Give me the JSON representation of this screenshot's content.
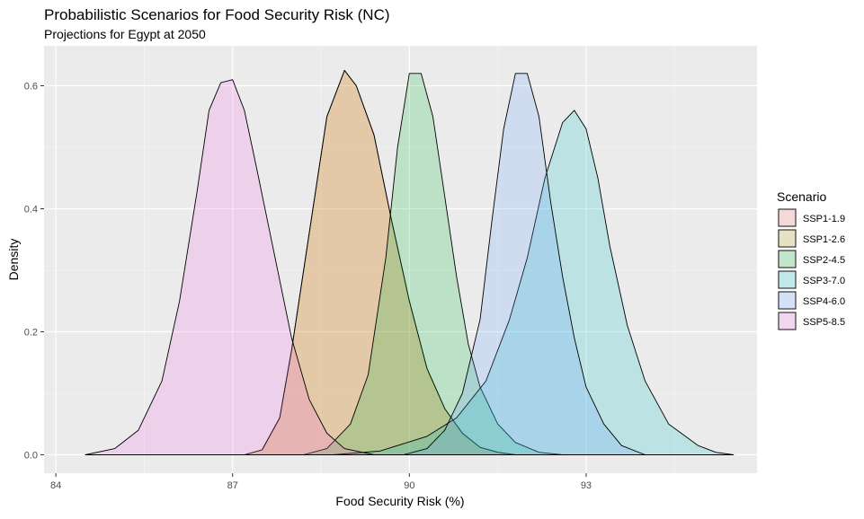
{
  "chart_data": {
    "type": "area",
    "title": "Probabilistic Scenarios for Food Security Risk (NC)",
    "subtitle": "Projections for Egypt at 2050",
    "xlabel": "Food Security Risk (%)",
    "ylabel": "Density",
    "xlim": [
      83.8,
      95.9
    ],
    "ylim": [
      -0.03,
      0.665
    ],
    "x_ticks": [
      84,
      87,
      90,
      93
    ],
    "x_tick_labels": [
      "84",
      "87",
      "90",
      "93"
    ],
    "y_ticks": [
      0.0,
      0.2,
      0.4,
      0.6
    ],
    "y_tick_labels": [
      "0.0",
      "0.2",
      "0.4",
      "0.6"
    ],
    "grid": true,
    "legend_title": "Scenario",
    "legend_position": "right",
    "series": [
      {
        "name": "SSP1-1.9",
        "color": "#F8766D",
        "x": [
          87.2,
          87.5,
          87.8,
          88.0,
          88.3,
          88.6,
          88.9,
          89.1,
          89.4,
          89.7,
          90.0,
          90.3,
          90.6,
          90.9,
          91.2,
          91.5,
          91.8
        ],
        "y": [
          0.0,
          0.008,
          0.06,
          0.17,
          0.36,
          0.55,
          0.625,
          0.6,
          0.52,
          0.38,
          0.25,
          0.14,
          0.075,
          0.035,
          0.012,
          0.004,
          0.0
        ]
      },
      {
        "name": "SSP1-2.6",
        "color": "#B79F00",
        "x": [
          87.2,
          87.5,
          87.8,
          88.0,
          88.3,
          88.6,
          88.9,
          89.1,
          89.4,
          89.7,
          90.0,
          90.3,
          90.6,
          90.9,
          91.2,
          91.5,
          91.8
        ],
        "y": [
          0.0,
          0.008,
          0.06,
          0.17,
          0.36,
          0.55,
          0.625,
          0.6,
          0.52,
          0.38,
          0.25,
          0.14,
          0.075,
          0.035,
          0.012,
          0.004,
          0.0
        ]
      },
      {
        "name": "SSP2-4.5",
        "color": "#00BA38",
        "x": [
          88.2,
          88.6,
          89.0,
          89.3,
          89.6,
          89.8,
          90.0,
          90.2,
          90.4,
          90.6,
          90.8,
          91.0,
          91.2,
          91.5,
          91.8,
          92.2,
          92.6
        ],
        "y": [
          0.0,
          0.01,
          0.05,
          0.13,
          0.32,
          0.5,
          0.62,
          0.62,
          0.55,
          0.42,
          0.29,
          0.18,
          0.11,
          0.05,
          0.02,
          0.004,
          0.0
        ]
      },
      {
        "name": "SSP3-7.0",
        "color": "#00BFC4",
        "x": [
          88.7,
          89.5,
          90.3,
          90.8,
          91.3,
          91.7,
          92.0,
          92.3,
          92.6,
          92.8,
          93.0,
          93.2,
          93.4,
          93.7,
          94.0,
          94.4,
          94.9,
          95.2,
          95.5
        ],
        "y": [
          0.0,
          0.006,
          0.03,
          0.06,
          0.12,
          0.22,
          0.32,
          0.45,
          0.54,
          0.56,
          0.53,
          0.45,
          0.34,
          0.21,
          0.12,
          0.05,
          0.015,
          0.004,
          0.0
        ]
      },
      {
        "name": "SSP4-6.0",
        "color": "#619CFF",
        "x": [
          89.9,
          90.3,
          90.6,
          90.9,
          91.2,
          91.4,
          91.6,
          91.8,
          92.0,
          92.2,
          92.4,
          92.6,
          92.8,
          93.0,
          93.3,
          93.6,
          94.0
        ],
        "y": [
          0.0,
          0.01,
          0.04,
          0.1,
          0.22,
          0.38,
          0.53,
          0.62,
          0.62,
          0.55,
          0.41,
          0.29,
          0.19,
          0.11,
          0.05,
          0.015,
          0.0
        ]
      },
      {
        "name": "SSP5-8.5",
        "color": "#F564E3",
        "x": [
          84.5,
          85.0,
          85.4,
          85.8,
          86.1,
          86.4,
          86.6,
          86.8,
          87.0,
          87.2,
          87.4,
          87.7,
          88.0,
          88.3,
          88.6,
          88.9,
          89.4
        ],
        "y": [
          0.0,
          0.01,
          0.04,
          0.12,
          0.25,
          0.43,
          0.56,
          0.605,
          0.61,
          0.56,
          0.47,
          0.33,
          0.19,
          0.09,
          0.035,
          0.01,
          0.0
        ]
      }
    ]
  }
}
